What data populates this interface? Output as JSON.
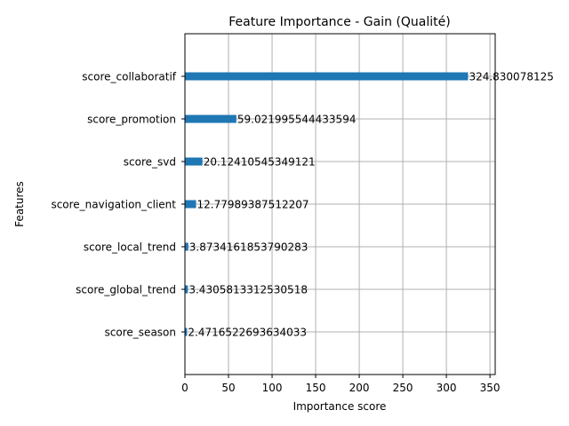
{
  "chart_data": {
    "type": "bar",
    "orientation": "horizontal",
    "title": "Feature Importance - Gain (Qualité)",
    "xlabel": "Importance score",
    "ylabel": "Features",
    "xlim": [
      0,
      356
    ],
    "xticks": [
      0,
      50,
      100,
      150,
      200,
      250,
      300,
      350
    ],
    "xtick_labels": [
      "0",
      "50",
      "100",
      "150",
      "200",
      "250",
      "300",
      "350"
    ],
    "grid": true,
    "categories": [
      "score_collaboratif",
      "score_promotion",
      "score_svd",
      "score_navigation_client",
      "score_local_trend",
      "score_global_trend",
      "score_season"
    ],
    "values": [
      324.830078125,
      59.021995544433594,
      20.12410545349121,
      12.77989387512207,
      3.8734161853790283,
      3.4305813312530518,
      2.4716522693634033
    ],
    "value_labels": [
      "324.830078125",
      "59.021995544433594",
      "20.12410545349121",
      "12.77989387512207",
      "3.8734161853790283",
      "3.4305813312530518",
      "2.4716522693634033"
    ],
    "bar_color": "#1f77b4",
    "grid_color": "#b0b0b0"
  }
}
